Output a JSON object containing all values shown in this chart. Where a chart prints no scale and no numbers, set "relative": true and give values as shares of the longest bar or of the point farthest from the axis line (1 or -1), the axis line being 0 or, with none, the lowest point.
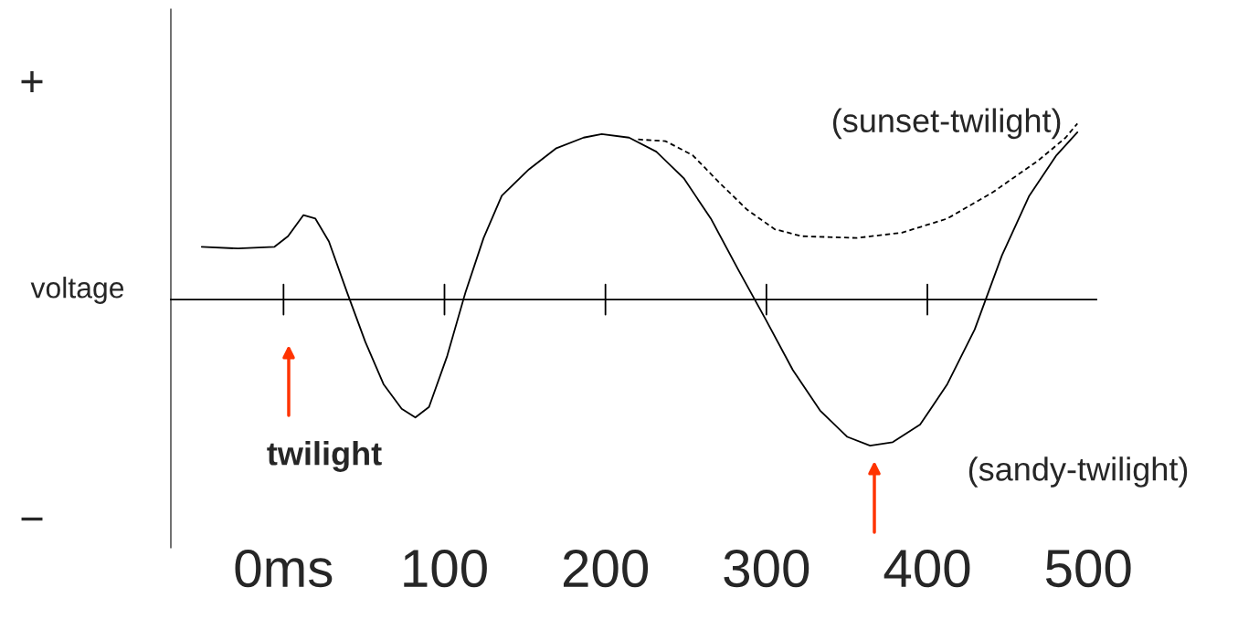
{
  "chart_data": {
    "type": "line",
    "relative": true,
    "ylabel": "voltage",
    "xlim": [
      -70,
      505
    ],
    "xticks": [
      {
        "value": 0,
        "label": "0ms"
      },
      100,
      200,
      300,
      400,
      500
    ],
    "x": [
      -50.8,
      -28.2,
      -5.6,
      2.8,
      12.4,
      19.8,
      28.2,
      39.5,
      50.8,
      62.1,
      73.4,
      81.9,
      90.4,
      101.7,
      113.0,
      124.3,
      135.6,
      152.5,
      169.5,
      186.4,
      197.7,
      214.7,
      231.6,
      248.6,
      265.5,
      282.5,
      299.4,
      316.4,
      333.3,
      350.3,
      364.4,
      378.5,
      395.5,
      412.4,
      429.4,
      446.3,
      463.3,
      480.2,
      493.2
    ],
    "series": [
      {
        "color": "#000000",
        "line_style": "solid",
        "values": [
          0.3,
          0.29,
          0.3,
          0.36,
          0.48,
          0.46,
          0.33,
          0.04,
          -0.24,
          -0.48,
          -0.62,
          -0.67,
          -0.61,
          -0.32,
          0.04,
          0.35,
          0.59,
          0.74,
          0.86,
          0.92,
          0.94,
          0.92,
          0.84,
          0.69,
          0.46,
          0.17,
          -0.11,
          -0.4,
          -0.63,
          -0.78,
          -0.83,
          -0.81,
          -0.71,
          -0.48,
          -0.17,
          0.25,
          0.59,
          0.82,
          0.95
        ]
      },
      {
        "name": "(sunset-twilight)",
        "color": "#000000",
        "line_style": "dashed",
        "x": [
          220.3,
          237.3,
          254.2,
          271.2,
          288.1,
          305.1,
          322.0,
          355.9,
          384.2,
          412.4,
          440.7,
          468.9,
          485.9,
          493.2
        ],
        "values": [
          0.91,
          0.9,
          0.82,
          0.66,
          0.51,
          0.4,
          0.36,
          0.35,
          0.38,
          0.46,
          0.61,
          0.79,
          0.92,
          1
        ]
      }
    ],
    "annotations": [
      "+",
      "−",
      "twilight",
      "(sandy-twilight)"
    ],
    "marker": "none",
    "legend": false,
    "grid": false
  }
}
